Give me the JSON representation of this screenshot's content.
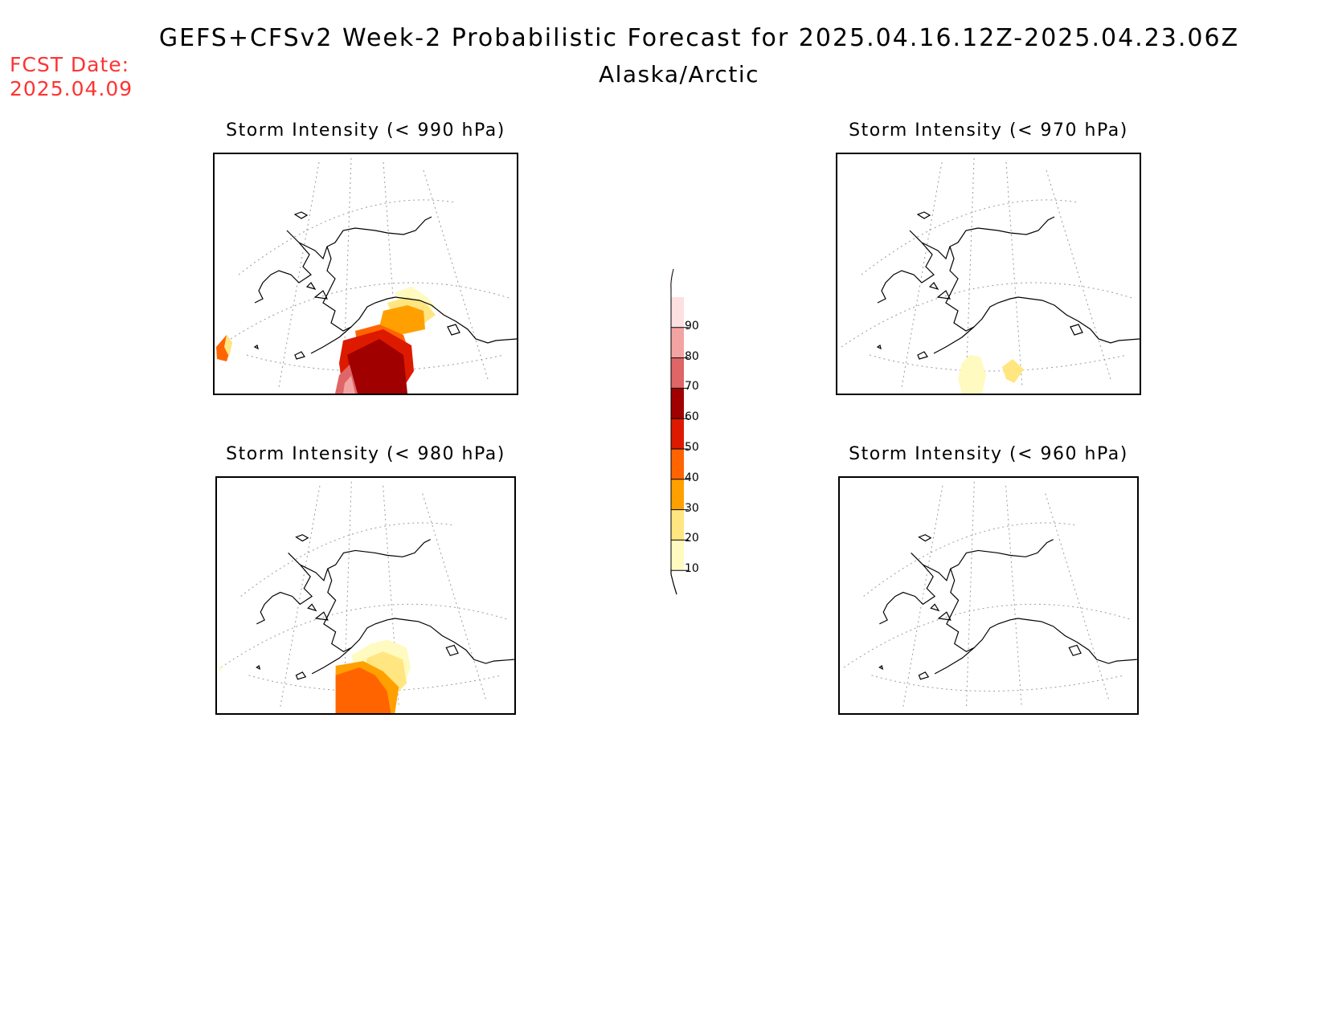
{
  "header": {
    "title": "GEFS+CFSv2 Week-2 Probabilistic Forecast for 2025.04.16.12Z-2025.04.23.06Z",
    "region": "Alaska/Arctic",
    "fcst_date_label": "FCST Date:",
    "fcst_date_value": "2025.04.09"
  },
  "panels": [
    {
      "id": "p990",
      "title": "Storm Intensity (< 990 hPa)"
    },
    {
      "id": "p970",
      "title": "Storm Intensity (< 970 hPa)"
    },
    {
      "id": "p980",
      "title": "Storm Intensity (< 980 hPa)"
    },
    {
      "id": "p960",
      "title": "Storm Intensity (< 960 hPa)"
    }
  ],
  "colorbar": {
    "labels": [
      "90",
      "80",
      "70",
      "60",
      "50",
      "40",
      "30",
      "20",
      "10"
    ],
    "colors": [
      "#fde0e0",
      "#f4a3a3",
      "#de6666",
      "#a00000",
      "#dd1a00",
      "#ff6400",
      "#ffa000",
      "#ffe680",
      "#fffac0"
    ]
  }
}
